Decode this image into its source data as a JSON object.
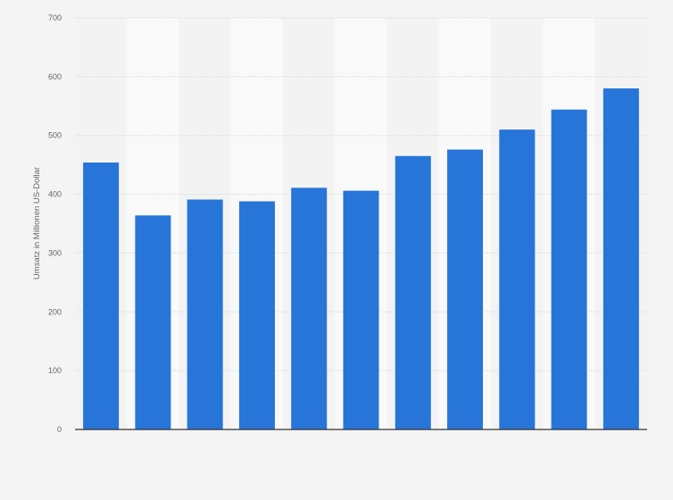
{
  "chart_data": {
    "type": "bar",
    "title": "",
    "xlabel": "",
    "ylabel": "Umsatz in Millionen US-Dollar",
    "categories": [
      "",
      "",
      "",
      "",
      "",
      "",
      "",
      "",
      "",
      "",
      ""
    ],
    "values": [
      454,
      364,
      391,
      388,
      411,
      406,
      465,
      476,
      510,
      544,
      580
    ],
    "ylim": [
      0,
      700
    ],
    "yticks": [
      "0",
      "100",
      "200",
      "300",
      "400",
      "500",
      "600",
      "700"
    ],
    "grid": true,
    "bar_color": "#2775d9",
    "legend": "none"
  }
}
